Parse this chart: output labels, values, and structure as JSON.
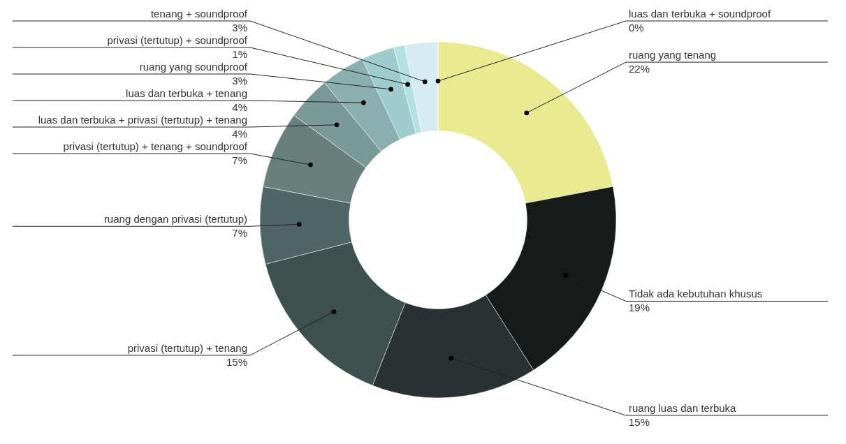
{
  "chart_data": {
    "type": "donut",
    "categories": [
      "ruang yang tenang",
      "Tidak ada kebutuhan khusus",
      "ruang luas dan terbuka",
      "privasi (tertutup) + tenang",
      "ruang dengan privasi (tertutup)",
      "privasi (tertutup) + tenang + soundproof",
      "luas dan terbuka + privasi (tertutup) + tenang",
      "luas dan terbuka + tenang",
      "ruang yang soundproof",
      "privasi (tertutup) + soundproof",
      "tenang + soundproof",
      "luas dan terbuka + soundproof"
    ],
    "values": [
      22,
      19,
      15,
      15,
      7,
      7,
      4,
      4,
      3,
      1,
      3,
      0
    ],
    "value_labels": [
      "22%",
      "19%",
      "15%",
      "15%",
      "7%",
      "7%",
      "4%",
      "4%",
      "3%",
      "1%",
      "3%",
      "0%"
    ],
    "colors": [
      "#e8ea91",
      "#151a1a",
      "#283232",
      "#3d4f4f",
      "#4f6566",
      "#67807c",
      "#7a9895",
      "#8aafae",
      "#9ecbcb",
      "#b5e0e2",
      "#d6ecf3",
      "#eef6fa"
    ]
  }
}
